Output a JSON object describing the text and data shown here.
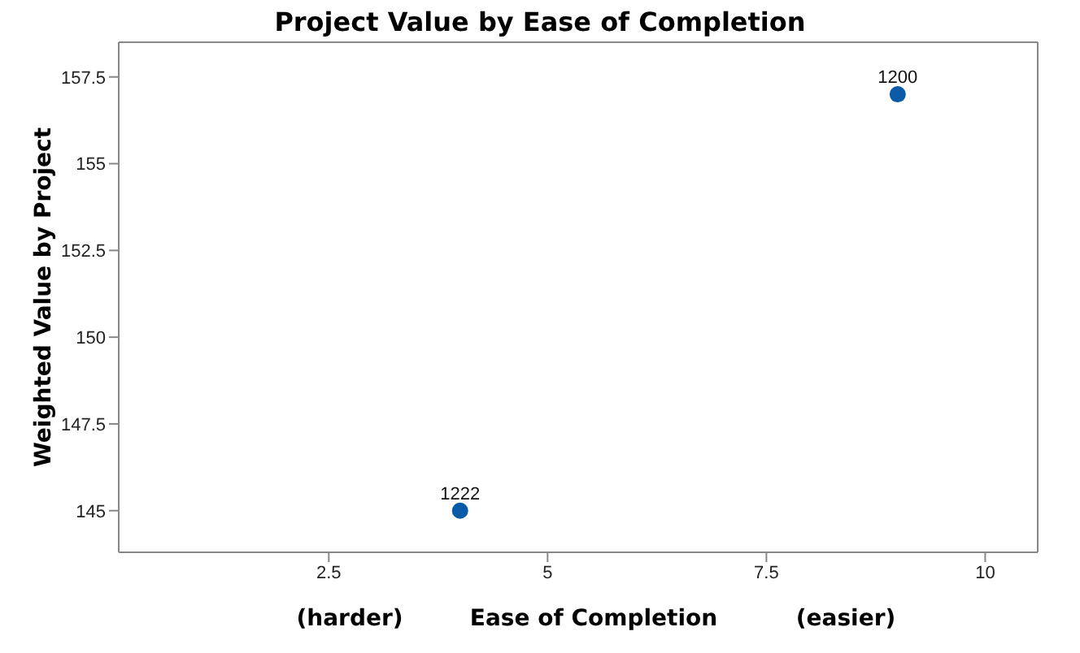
{
  "chart_data": {
    "type": "scatter",
    "title": "Project Value by Ease of Completion",
    "xlabel": "Ease of Completion",
    "ylabel": "Weighted Value by Project",
    "annotations": [
      "(harder)",
      "(easier)",
      {
        "text": "1222",
        "x": 4,
        "y": 145
      },
      {
        "text": "1200",
        "x": 9,
        "y": 157
      }
    ],
    "x": [
      4,
      9
    ],
    "series": [
      {
        "color": "#0b5aa8",
        "values": [
          145,
          157
        ]
      }
    ],
    "xlim": [
      0.1,
      10.6
    ],
    "xticks": [
      2.5,
      5,
      7.5,
      10
    ],
    "ylim": [
      143.8,
      158.5
    ],
    "yticks": [
      145,
      147.5,
      150,
      152.5,
      155,
      157.5
    ],
    "marker": "circle"
  }
}
